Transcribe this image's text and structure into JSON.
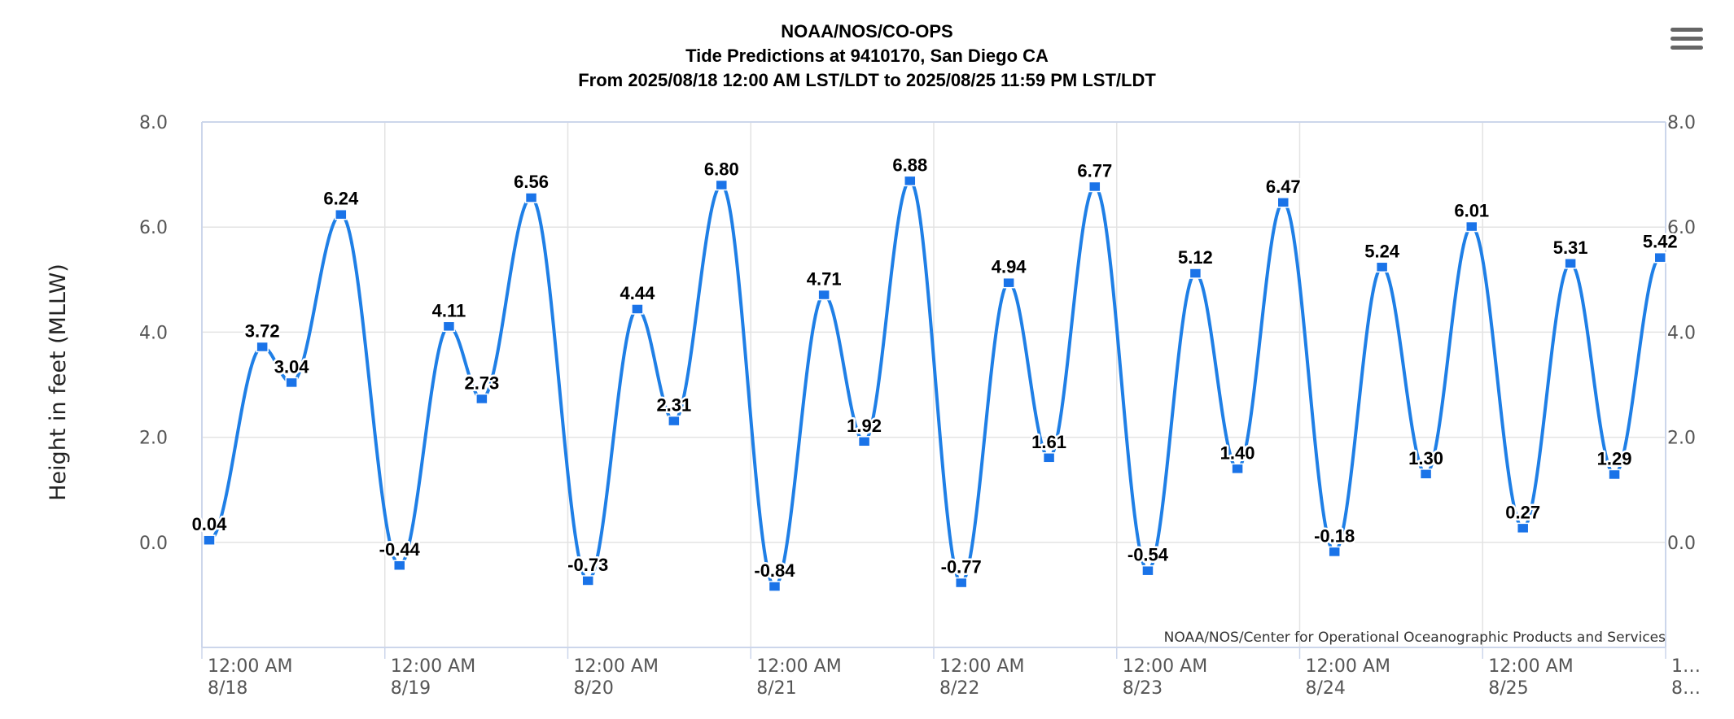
{
  "header": {
    "title": "NOAA/NOS/CO-OPS",
    "subtitle": "Tide Predictions at 9410170, San Diego CA",
    "range": "From 2025/08/18 12:00 AM LST/LDT to 2025/08/25 11:59 PM LST/LDT"
  },
  "menu": {
    "icon": "hamburger-menu-icon"
  },
  "credit": "NOAA/NOS/Center for Operational Oceanographic Products and Services",
  "colors": {
    "series": "#1f7fe6",
    "marker": "#1a73e8",
    "grid": "#e3e3e3",
    "axis": "#ccd6eb"
  },
  "chart_data": {
    "type": "line",
    "title": "NOAA/NOS/CO-OPS",
    "subtitle": "Tide Predictions at 9410170, San Diego CA",
    "ylabel": "Height in feet (MLLW)",
    "ylim": [
      -2,
      8
    ],
    "y_ticks": [
      "8.0",
      "6.0",
      "4.0",
      "2.0",
      "0.0"
    ],
    "y_tick_values": [
      8,
      6,
      4,
      2,
      0
    ],
    "x_tick_labels": [
      [
        "12:00 AM",
        "8/18"
      ],
      [
        "12:00 AM",
        "8/19"
      ],
      [
        "12:00 AM",
        "8/20"
      ],
      [
        "12:00 AM",
        "8/21"
      ],
      [
        "12:00 AM",
        "8/22"
      ],
      [
        "12:00 AM",
        "8/23"
      ],
      [
        "12:00 AM",
        "8/24"
      ],
      [
        "12:00 AM",
        "8/25"
      ],
      [
        "1…",
        "8…"
      ]
    ],
    "x_tick_days": [
      0,
      1,
      2,
      3,
      4,
      5,
      6,
      7,
      8
    ],
    "xlim_days": [
      0,
      8
    ],
    "x_unit": "days from 2025/08/18 12:00 AM",
    "grid": true,
    "legend": "none",
    "series": [
      {
        "points": [
          {
            "x": 0.04,
            "y": 0.04
          },
          {
            "x": 0.33,
            "y": 3.72
          },
          {
            "x": 0.49,
            "y": 3.04
          },
          {
            "x": 0.76,
            "y": 6.24
          },
          {
            "x": 1.08,
            "y": -0.44
          },
          {
            "x": 1.35,
            "y": 4.11
          },
          {
            "x": 1.53,
            "y": 2.73
          },
          {
            "x": 1.8,
            "y": 6.56
          },
          {
            "x": 2.11,
            "y": -0.73
          },
          {
            "x": 2.38,
            "y": 4.44
          },
          {
            "x": 2.58,
            "y": 2.31
          },
          {
            "x": 2.84,
            "y": 6.8
          },
          {
            "x": 3.13,
            "y": -0.84
          },
          {
            "x": 3.4,
            "y": 4.71
          },
          {
            "x": 3.62,
            "y": 1.92
          },
          {
            "x": 3.87,
            "y": 6.88
          },
          {
            "x": 4.15,
            "y": -0.77
          },
          {
            "x": 4.41,
            "y": 4.94
          },
          {
            "x": 4.63,
            "y": 1.61
          },
          {
            "x": 4.88,
            "y": 6.77
          },
          {
            "x": 5.17,
            "y": -0.54
          },
          {
            "x": 5.43,
            "y": 5.12
          },
          {
            "x": 5.66,
            "y": 1.4
          },
          {
            "x": 5.91,
            "y": 6.47
          },
          {
            "x": 6.19,
            "y": -0.18
          },
          {
            "x": 6.45,
            "y": 5.24
          },
          {
            "x": 6.69,
            "y": 1.3
          },
          {
            "x": 6.94,
            "y": 6.01
          },
          {
            "x": 7.22,
            "y": 0.27
          },
          {
            "x": 7.48,
            "y": 5.31
          },
          {
            "x": 7.72,
            "y": 1.29
          },
          {
            "x": 7.97,
            "y": 5.42
          }
        ],
        "labels": [
          "0.04",
          "3.72",
          "3.04",
          "6.24",
          "-0.44",
          "4.11",
          "2.73",
          "6.56",
          "-0.73",
          "4.44",
          "2.31",
          "6.80",
          "-0.84",
          "4.71",
          "1.92",
          "6.88",
          "-0.77",
          "4.94",
          "1.61",
          "6.77",
          "-0.54",
          "5.12",
          "1.40",
          "6.47",
          "-0.18",
          "5.24",
          "1.30",
          "6.01",
          "0.27",
          "5.31",
          "1.29",
          "5.42"
        ]
      }
    ]
  }
}
